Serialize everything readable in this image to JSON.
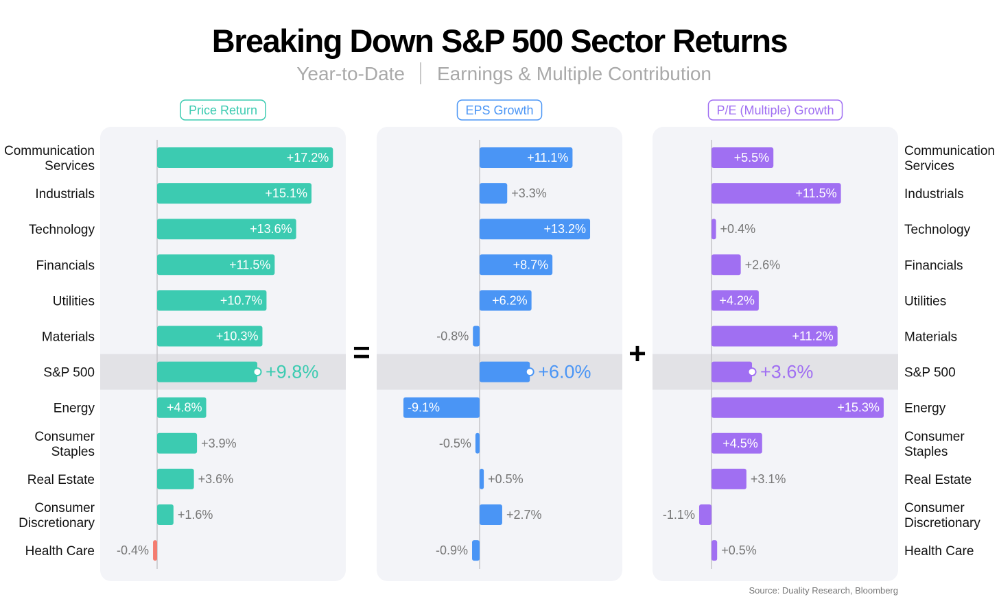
{
  "chart_data": {
    "type": "bar",
    "title": "Breaking Down S&P 500 Sector Returns",
    "subtitle_left": "Year-to-Date",
    "subtitle_right": "Earnings & Multiple Contribution",
    "operators": [
      "=",
      "+"
    ],
    "source": "Source: Duality Research, Bloomberg",
    "categories": [
      "Communication Services",
      "Industrials",
      "Technology",
      "Financials",
      "Utilities",
      "Materials",
      "S&P 500",
      "Energy",
      "Consumer Staples",
      "Real Estate",
      "Consumer Discretionary",
      "Health Care"
    ],
    "highlight_category": "S&P 500",
    "series": [
      {
        "name": "Price Return",
        "color": "#3ccbb1",
        "negative_color": "#f47c70",
        "values": [
          17.2,
          15.1,
          13.6,
          11.5,
          10.7,
          10.3,
          9.8,
          4.8,
          3.9,
          3.6,
          1.6,
          -0.4
        ],
        "labels": [
          "+17.2%",
          "+15.1%",
          "+13.6%",
          "+11.5%",
          "+10.7%",
          "+10.3%",
          "+9.8%",
          "+4.8%",
          "+3.9%",
          "+3.6%",
          "+1.6%",
          "-0.4%"
        ]
      },
      {
        "name": "EPS Growth",
        "color": "#4a95f5",
        "negative_color": "#4a95f5",
        "values": [
          11.1,
          3.3,
          13.2,
          8.7,
          6.2,
          -0.8,
          6.0,
          -9.1,
          -0.5,
          0.5,
          2.7,
          -0.9
        ],
        "labels": [
          "+11.1%",
          "+3.3%",
          "+13.2%",
          "+8.7%",
          "+6.2%",
          "-0.8%",
          "+6.0%",
          "-9.1%",
          "-0.5%",
          "+0.5%",
          "+2.7%",
          "-0.9%"
        ]
      },
      {
        "name": "P/E (Multiple) Growth",
        "color": "#a06ff2",
        "negative_color": "#a06ff2",
        "values": [
          5.5,
          11.5,
          0.4,
          2.6,
          4.2,
          11.2,
          3.6,
          15.3,
          4.5,
          3.1,
          -1.1,
          0.5
        ],
        "labels": [
          "+5.5%",
          "+11.5%",
          "+0.4%",
          "+2.6%",
          "+4.2%",
          "+11.2%",
          "+3.6%",
          "+15.3%",
          "+4.5%",
          "+3.1%",
          "-1.1%",
          "+0.5%"
        ]
      }
    ]
  }
}
